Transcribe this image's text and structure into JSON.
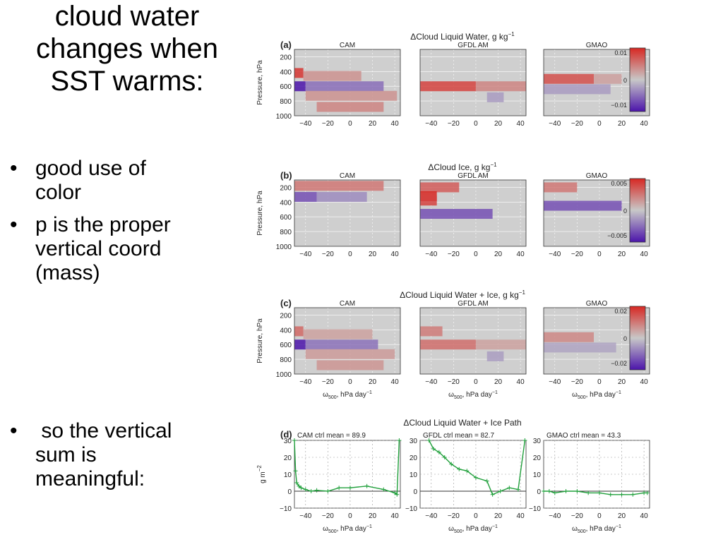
{
  "slide": {
    "title_lines": [
      "cloud water",
      "changes when",
      "SST warms:"
    ],
    "bullet_symbol": "•",
    "bullets": [
      {
        "lines": [
          "good use of",
          "color"
        ]
      },
      {
        "lines": [
          "p is the proper",
          "vertical coord",
          "(mass)"
        ]
      },
      {
        "lines": [
          " so the vertical",
          "sum is",
          "meaningful:"
        ]
      }
    ]
  },
  "chart_data": [
    {
      "type": "heatmap",
      "panel_letter": "(a)",
      "title": "ΔCloud Liquid Water, g kg",
      "title_sup": "−1",
      "ylabel": "Pressure, hPa",
      "yticks": [
        "200",
        "400",
        "600",
        "800",
        "1000"
      ],
      "ylim": [
        1000,
        100
      ],
      "xticks": [
        "−40",
        "−20",
        "0",
        "20",
        "40"
      ],
      "xlim": [
        -50,
        45
      ],
      "models": [
        "CAM",
        "GFDL AM",
        "GMAO"
      ],
      "colorbar_ticks": [
        "0.01",
        "0",
        "−0.01"
      ],
      "colorbar_range": [
        -0.012,
        0.012
      ],
      "bands": [
        [
          {
            "p": 420,
            "x0": -50,
            "x1": -42,
            "value": 0.011
          },
          {
            "p": 460,
            "x0": -42,
            "x1": 10,
            "value": 0.004
          },
          {
            "p": 600,
            "x0": -50,
            "x1": -40,
            "value": -0.012
          },
          {
            "p": 600,
            "x0": -40,
            "x1": 30,
            "value": -0.006
          },
          {
            "p": 730,
            "x0": -40,
            "x1": 42,
            "value": 0.004
          },
          {
            "p": 880,
            "x0": -30,
            "x1": 30,
            "value": 0.005
          }
        ],
        [
          {
            "p": 600,
            "x0": -50,
            "x1": 0,
            "value": 0.01
          },
          {
            "p": 600,
            "x0": 0,
            "x1": 45,
            "value": 0.005
          },
          {
            "p": 750,
            "x0": 10,
            "x1": 25,
            "value": -0.003
          }
        ],
        [
          {
            "p": 500,
            "x0": -50,
            "x1": -5,
            "value": 0.009
          },
          {
            "p": 500,
            "x0": -5,
            "x1": 20,
            "value": 0.003
          },
          {
            "p": 640,
            "x0": -50,
            "x1": 10,
            "value": -0.003
          }
        ]
      ]
    },
    {
      "type": "heatmap",
      "panel_letter": "(b)",
      "title": "ΔCloud Ice, g kg",
      "title_sup": "−1",
      "ylabel": "Pressure, hPa",
      "yticks": [
        "200",
        "400",
        "600",
        "800",
        "1000"
      ],
      "ylim": [
        1000,
        100
      ],
      "xticks": [
        "−40",
        "−20",
        "0",
        "20",
        "40"
      ],
      "xlim": [
        -50,
        45
      ],
      "models": [
        "CAM",
        "GFDL AM",
        "GMAO"
      ],
      "colorbar_ticks": [
        "0.005",
        "0",
        "−0.005"
      ],
      "colorbar_range": [
        -0.006,
        0.006
      ],
      "bands": [
        [
          {
            "p": 180,
            "x0": -50,
            "x1": 30,
            "value": 0.003
          },
          {
            "p": 330,
            "x0": -50,
            "x1": -30,
            "value": -0.004
          },
          {
            "p": 330,
            "x0": -30,
            "x1": 15,
            "value": -0.002
          }
        ],
        [
          {
            "p": 200,
            "x0": -50,
            "x1": -15,
            "value": 0.004
          },
          {
            "p": 320,
            "x0": -50,
            "x1": -35,
            "value": 0.006
          },
          {
            "p": 380,
            "x0": -50,
            "x1": -35,
            "value": 0.005
          },
          {
            "p": 560,
            "x0": -50,
            "x1": 15,
            "value": -0.004
          }
        ],
        [
          {
            "p": 200,
            "x0": -50,
            "x1": -20,
            "value": 0.003
          },
          {
            "p": 450,
            "x0": -50,
            "x1": 20,
            "value": -0.004
          }
        ]
      ]
    },
    {
      "type": "heatmap",
      "panel_letter": "(c)",
      "title": "ΔCloud Liquid Water + Ice, g kg",
      "title_sup": "−1",
      "ylabel": "Pressure, hPa",
      "yticks": [
        "200",
        "400",
        "600",
        "800",
        "1000"
      ],
      "ylim": [
        1000,
        100
      ],
      "xticks": [
        "−40",
        "−20",
        "0",
        "20",
        "40"
      ],
      "xlim": [
        -50,
        45
      ],
      "models": [
        "CAM",
        "GFDL AM",
        "GMAO"
      ],
      "xlabel": "ω",
      "xlabel_sub": "500",
      "xlabel_tail": ", hPa day",
      "xlabel_sup": "−1",
      "colorbar_ticks": [
        "0.02",
        "0",
        "−0.02"
      ],
      "colorbar_range": [
        -0.025,
        0.025
      ],
      "bands": [
        [
          {
            "p": 420,
            "x0": -50,
            "x1": -42,
            "value": 0.015
          },
          {
            "p": 460,
            "x0": -42,
            "x1": 20,
            "value": 0.006
          },
          {
            "p": 600,
            "x0": -50,
            "x1": -40,
            "value": -0.025
          },
          {
            "p": 600,
            "x0": -40,
            "x1": 25,
            "value": -0.012
          },
          {
            "p": 730,
            "x0": -40,
            "x1": 40,
            "value": 0.007
          },
          {
            "p": 880,
            "x0": -30,
            "x1": 30,
            "value": 0.008
          }
        ],
        [
          {
            "p": 420,
            "x0": -50,
            "x1": -30,
            "value": 0.012
          },
          {
            "p": 600,
            "x0": -50,
            "x1": 0,
            "value": 0.014
          },
          {
            "p": 600,
            "x0": 0,
            "x1": 45,
            "value": 0.006
          },
          {
            "p": 760,
            "x0": 10,
            "x1": 25,
            "value": -0.006
          }
        ],
        [
          {
            "p": 500,
            "x0": -50,
            "x1": -5,
            "value": 0.01
          },
          {
            "p": 640,
            "x0": -50,
            "x1": 15,
            "value": -0.005
          }
        ]
      ]
    },
    {
      "type": "line",
      "panel_letter": "(d)",
      "title": "ΔCloud Liquid Water + Ice Path",
      "ylabel": "g m",
      "ylabel_sup": "−2",
      "yticks": [
        "30",
        "20",
        "10",
        "0",
        "−10"
      ],
      "ylim": [
        -10,
        30
      ],
      "xticks": [
        "−40",
        "−20",
        "0",
        "20",
        "40"
      ],
      "xlim": [
        -50,
        45
      ],
      "xlabel": "ω",
      "xlabel_sub": "500",
      "xlabel_tail": ", hPa day",
      "xlabel_sup": "−1",
      "color": "#21a03c",
      "panels": [
        {
          "name": "CAM",
          "annotation": "ctrl mean = 89.9",
          "x": [
            -50,
            -49,
            -48,
            -46,
            -44,
            -40,
            -35,
            -30,
            -20,
            -10,
            0,
            15,
            30,
            40,
            42,
            44
          ],
          "y": [
            30,
            12,
            5,
            3,
            2,
            1,
            0,
            0.5,
            0,
            2,
            2,
            3,
            1,
            -1,
            -2,
            30
          ]
        },
        {
          "name": "GFDL",
          "annotation": "ctrl mean = 82.7",
          "x": [
            -42,
            -38,
            -33,
            -28,
            -22,
            -15,
            -8,
            0,
            10,
            15,
            22,
            30,
            38,
            44
          ],
          "y": [
            30,
            25,
            23,
            20,
            16,
            13,
            12,
            8,
            6,
            -2,
            0,
            2,
            1,
            30
          ]
        },
        {
          "name": "GMAO",
          "annotation": "ctrl mean = 43.3",
          "x": [
            -50,
            -45,
            -40,
            -30,
            -20,
            -10,
            0,
            10,
            20,
            30,
            40,
            43
          ],
          "y": [
            0,
            0,
            -1,
            0,
            0,
            -1,
            -1,
            -2,
            -2,
            -2,
            -1,
            -1
          ]
        }
      ]
    }
  ]
}
